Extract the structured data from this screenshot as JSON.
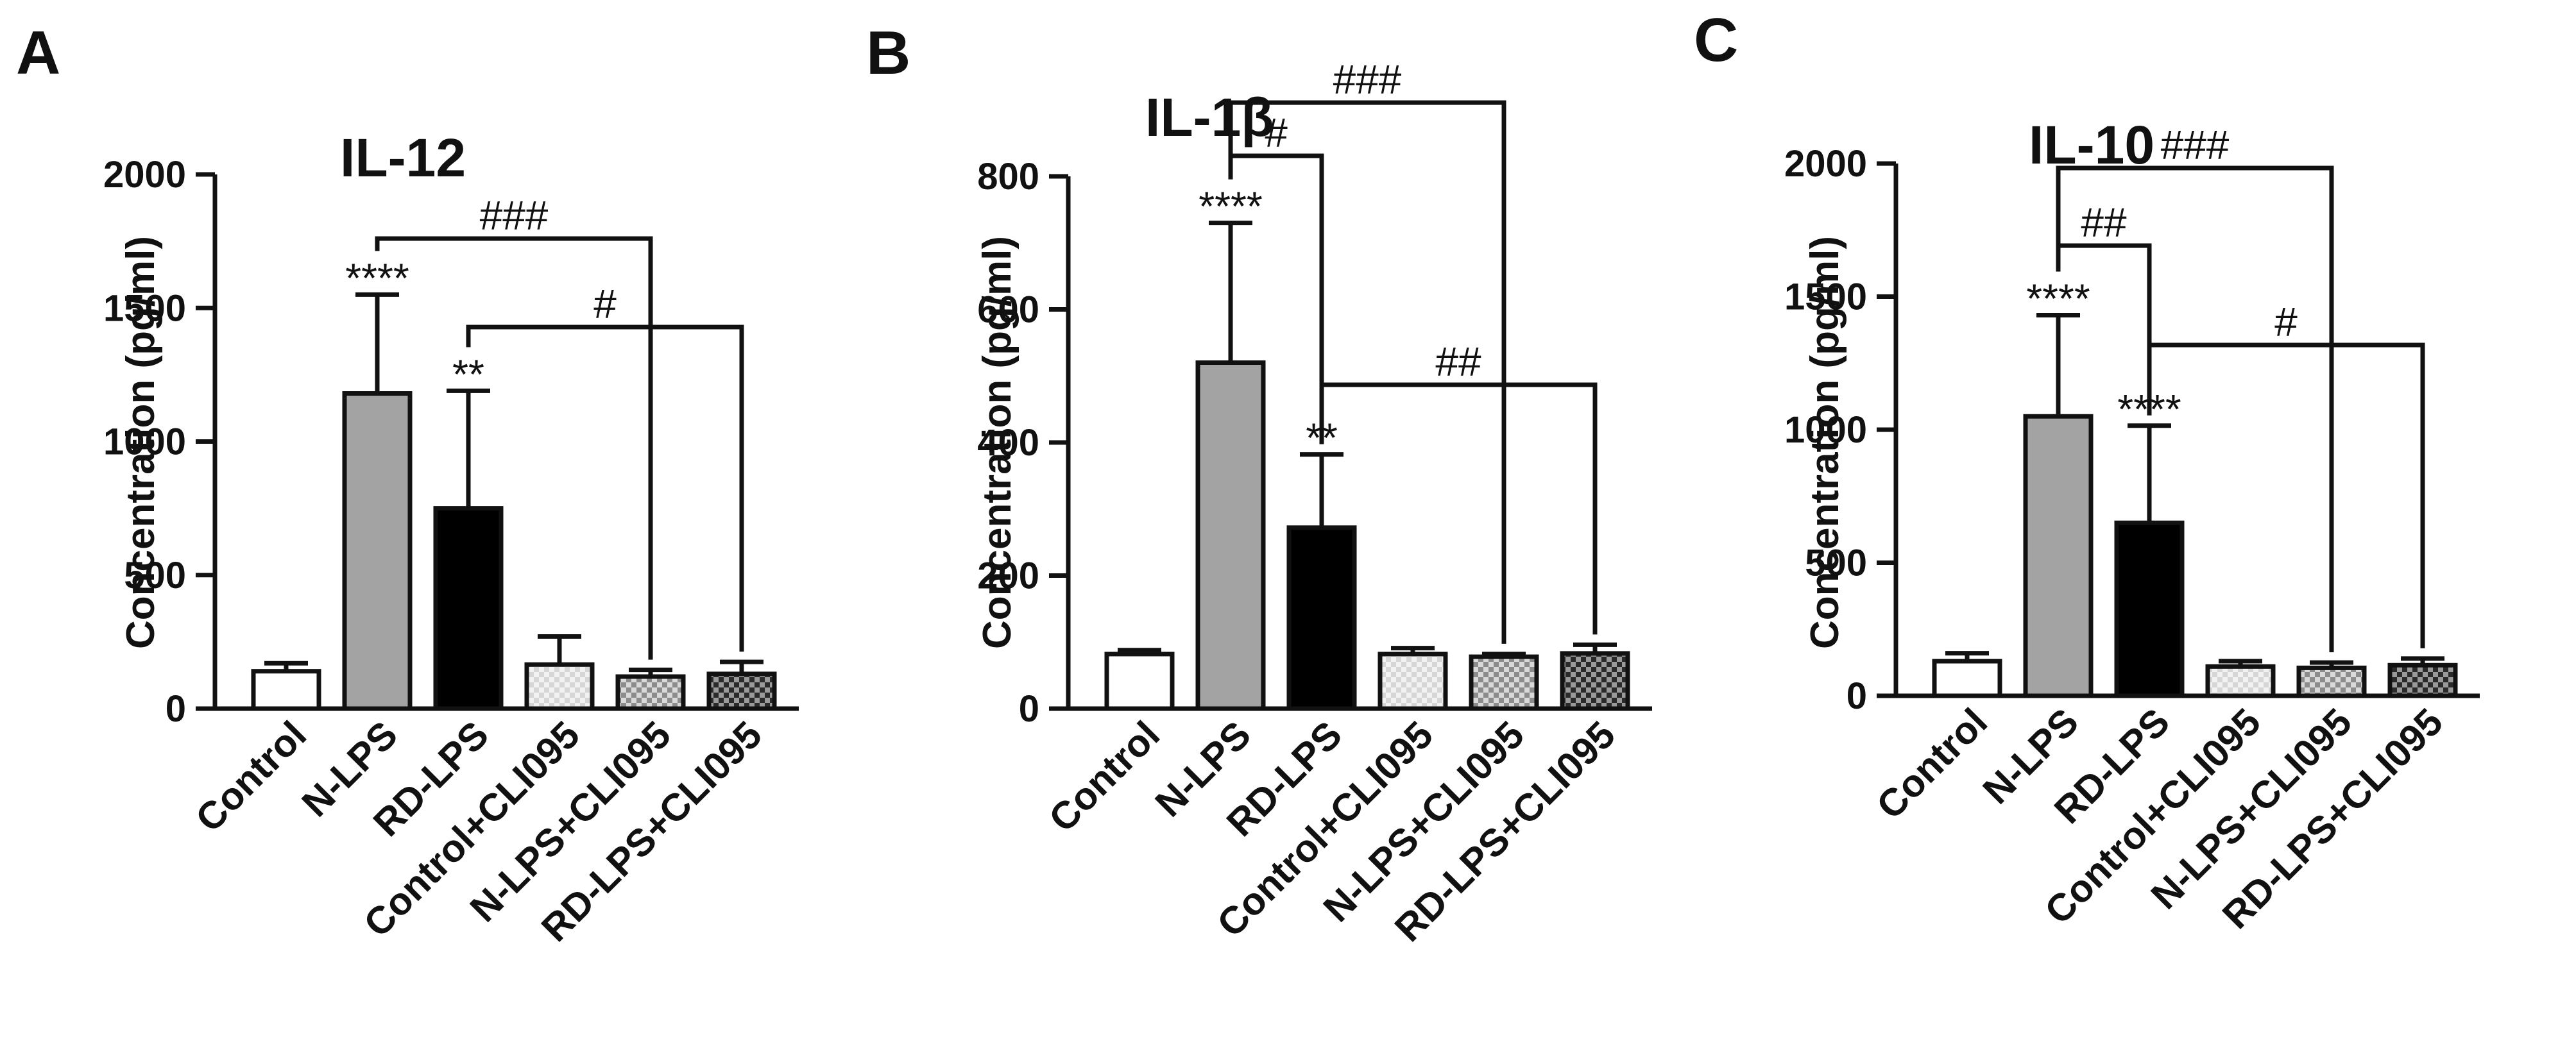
{
  "colors": {
    "axis": "#111111",
    "control": "#ffffff",
    "n_lps": "#a3a3a3",
    "rd_lps": "#000000",
    "control_cli": "#e6e6e6",
    "n_lps_cli": "#b7b7b7",
    "rd_lps_cli": "#6f6f6f"
  },
  "chart_data": [
    {
      "type": "bar",
      "panel": "A",
      "title": "IL-12",
      "ylabel": "Concentration (pg/ml)",
      "ylim": [
        0,
        2000
      ],
      "yticks": [
        0,
        500,
        1000,
        1500,
        2000
      ],
      "categories": [
        "Control",
        "N-LPS",
        "RD-LPS",
        "Control+CLI095",
        "N-LPS+CLI095",
        "RD-LPS+CLI095"
      ],
      "values": [
        140,
        1180,
        750,
        165,
        120,
        130
      ],
      "errors": [
        30,
        370,
        440,
        105,
        25,
        45
      ],
      "bar_annotations": [
        "",
        "****",
        "**",
        "",
        "",
        ""
      ],
      "brackets": [
        {
          "from": 1,
          "to": 4,
          "label": "###"
        },
        {
          "from": 2,
          "to": 5,
          "label": "#"
        }
      ]
    },
    {
      "type": "bar",
      "panel": "B",
      "title": "IL-1β",
      "ylabel": "Concentration (pg/ml)",
      "ylim": [
        0,
        800
      ],
      "yticks": [
        0,
        200,
        400,
        600,
        800
      ],
      "categories": [
        "Control",
        "N-LPS",
        "RD-LPS",
        "Control+CLI095",
        "N-LPS+CLI095",
        "RD-LPS+CLI095"
      ],
      "values": [
        82,
        520,
        272,
        82,
        78,
        83
      ],
      "errors": [
        6,
        210,
        110,
        9,
        4,
        13
      ],
      "bar_annotations": [
        "",
        "****",
        "**",
        "",
        "",
        ""
      ],
      "brackets": [
        {
          "from": 1,
          "to": 4,
          "label": "###"
        },
        {
          "from": 1,
          "to": 2,
          "label": "#"
        },
        {
          "from": 2,
          "to": 5,
          "label": "##"
        }
      ]
    },
    {
      "type": "bar",
      "panel": "C",
      "title": "IL-10",
      "ylabel": "Concentration (pg/ml)",
      "ylim": [
        0,
        2000
      ],
      "yticks": [
        0,
        500,
        1000,
        1500,
        2000
      ],
      "categories": [
        "Control",
        "N-LPS",
        "RD-LPS",
        "Control+CLI095",
        "N-LPS+CLI095",
        "RD-LPS+CLI095"
      ],
      "values": [
        130,
        1050,
        650,
        110,
        105,
        115
      ],
      "errors": [
        30,
        380,
        365,
        20,
        20,
        25
      ],
      "bar_annotations": [
        "",
        "****",
        "****",
        "",
        "",
        ""
      ],
      "brackets": [
        {
          "from": 1,
          "to": 4,
          "label": "###"
        },
        {
          "from": 1,
          "to": 2,
          "label": "##"
        },
        {
          "from": 2,
          "to": 5,
          "label": "#"
        }
      ]
    }
  ]
}
